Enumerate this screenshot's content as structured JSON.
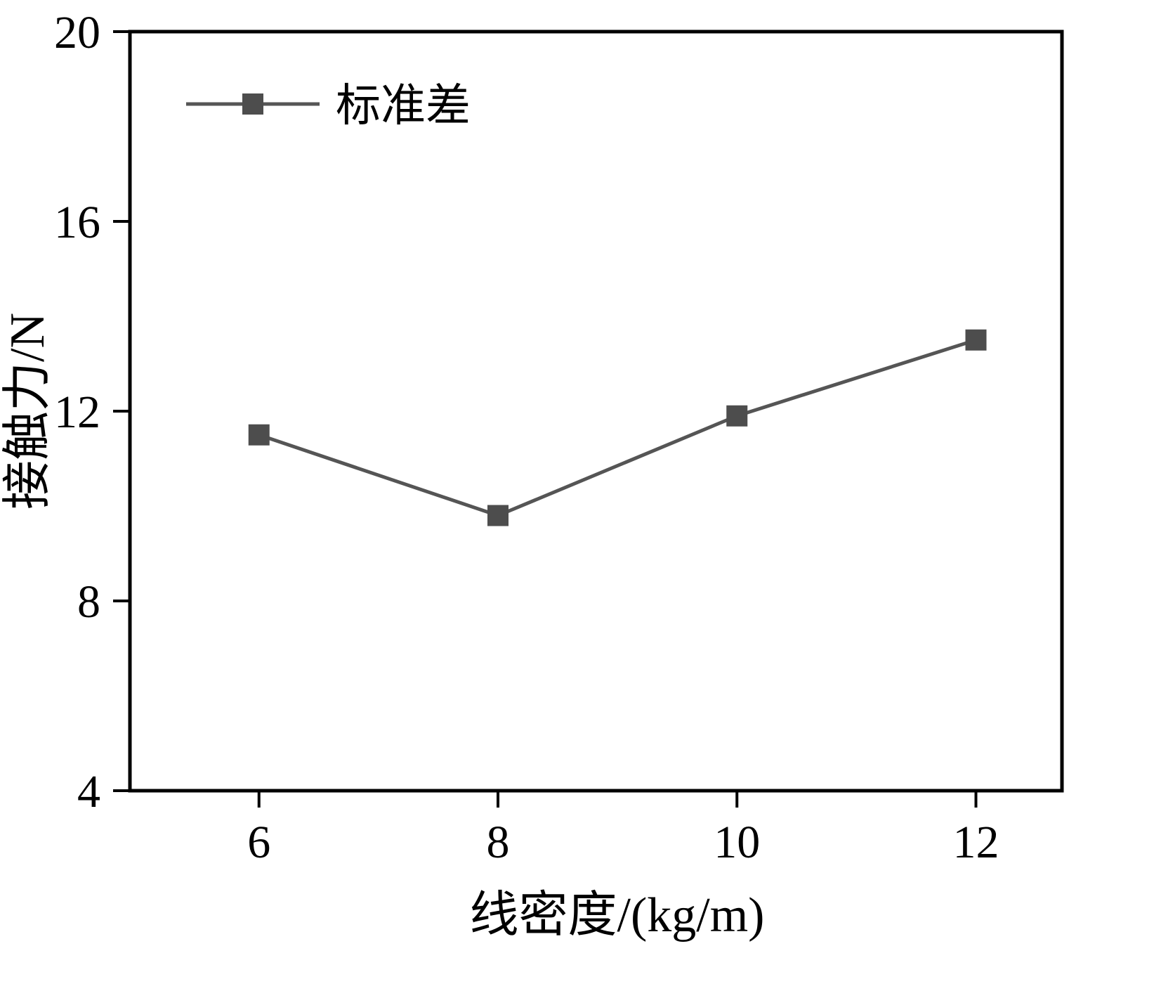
{
  "chart_data": {
    "type": "line",
    "title": "",
    "x": [
      6,
      8,
      10,
      12
    ],
    "series": [
      {
        "name": "标准差",
        "values": [
          11.5,
          9.8,
          11.9,
          13.5
        ]
      }
    ],
    "xlabel": "线密度/(kg/m)",
    "ylabel": "接触力/N",
    "xlim": [
      4.92,
      12.72
    ],
    "ylim": [
      4,
      20
    ],
    "xticks": [
      6,
      8,
      10,
      12
    ],
    "yticks": [
      4,
      8,
      12,
      16,
      20
    ],
    "grid": false,
    "legend_position": "top-left",
    "line_color": "#555555",
    "marker": "square",
    "marker_color": "#4d4d4d",
    "axis_color": "#000000",
    "background": "#ffffff"
  }
}
